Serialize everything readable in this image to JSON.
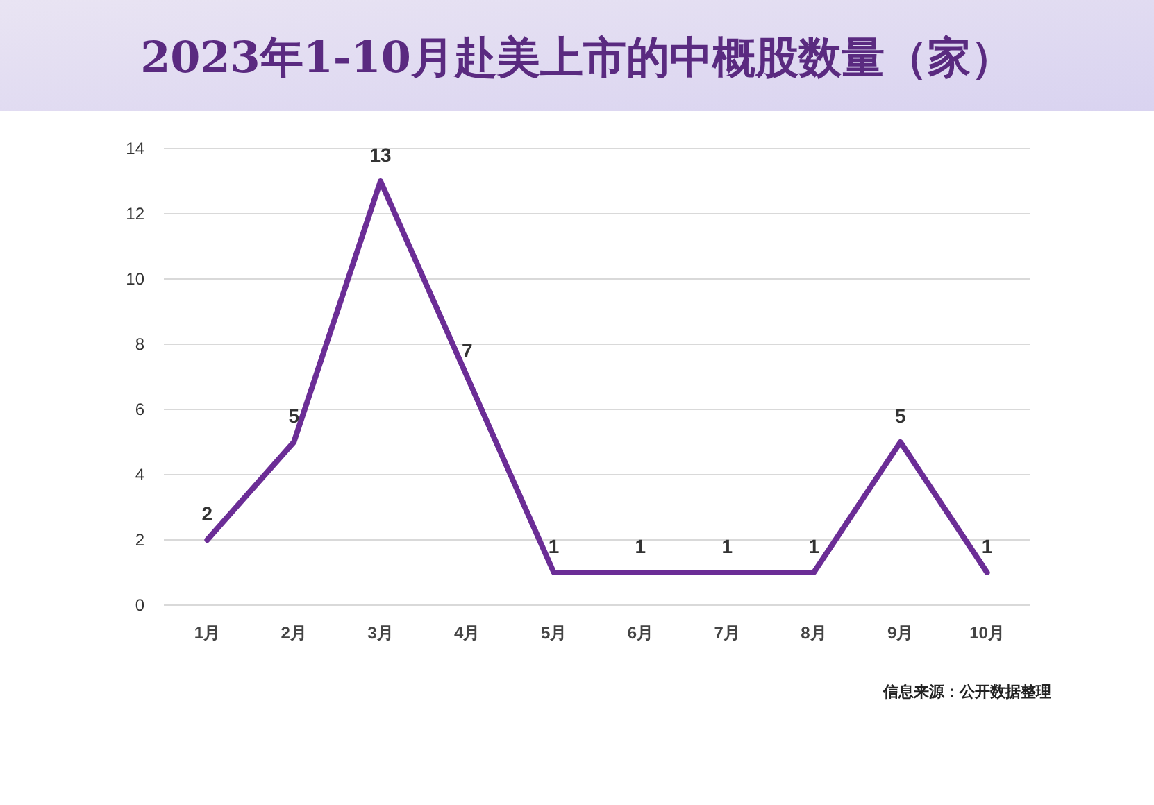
{
  "chart_data": {
    "type": "line",
    "title": "2023年1-10月赴美上市的中概股数量（家）",
    "categories": [
      "1月",
      "2月",
      "3月",
      "4月",
      "5月",
      "6月",
      "7月",
      "8月",
      "9月",
      "10月"
    ],
    "series": [
      {
        "color": "#6b2d96",
        "values": [
          2,
          5,
          13,
          7,
          1,
          1,
          1,
          1,
          5,
          1
        ]
      }
    ],
    "ylim": [
      0,
      14
    ],
    "yticks": [
      0,
      2,
      4,
      6,
      8,
      10,
      12,
      14
    ],
    "grid": "y",
    "data_labels": true,
    "annotations": [
      "信息来源：公开数据整理"
    ]
  }
}
